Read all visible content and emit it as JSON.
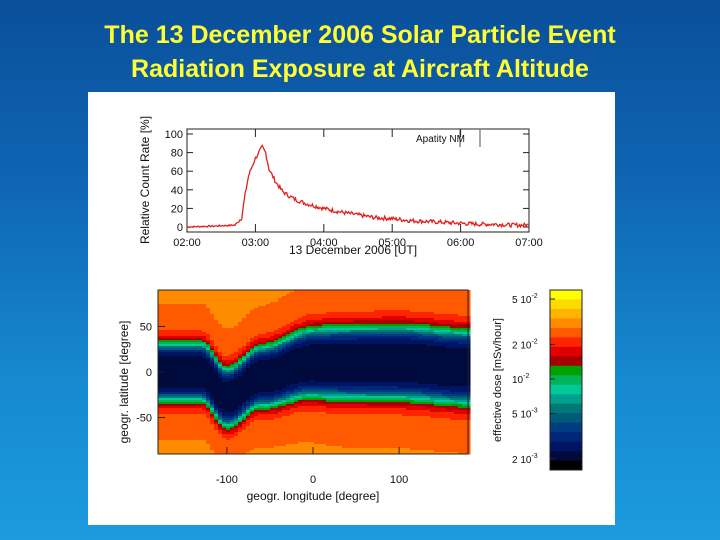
{
  "slide": {
    "title_line1": "The 13 December 2006 Solar Particle Event",
    "title_line2": "Radiation Exposure at Aircraft Altitude"
  },
  "chart_data": [
    {
      "type": "line",
      "title": "",
      "annotation": "Apatity NM",
      "xlabel": "13 December 2006 [UT]",
      "ylabel": "Relative Count Rate [%]",
      "x_ticks": [
        "02:00",
        "03:00",
        "04:00",
        "05:00",
        "06:00",
        "07:00"
      ],
      "y_ticks": [
        0,
        20,
        40,
        60,
        80,
        100
      ],
      "xlim": [
        2.0,
        7.0
      ],
      "ylim": [
        0,
        100
      ],
      "grid": false,
      "line_color": "#e0201c",
      "x": [
        2.0,
        2.4,
        2.7,
        2.8,
        2.85,
        2.9,
        2.95,
        3.0,
        3.05,
        3.1,
        3.15,
        3.2,
        3.3,
        3.4,
        3.5,
        3.6,
        3.75,
        4.0,
        4.25,
        4.5,
        4.75,
        5.0,
        5.25,
        5.5,
        5.75,
        6.0,
        6.25,
        6.5,
        6.75,
        7.0
      ],
      "y": [
        0,
        1,
        2,
        10,
        35,
        55,
        65,
        74,
        80,
        86,
        80,
        62,
        48,
        38,
        33,
        29,
        25,
        20,
        16,
        13,
        10,
        9,
        7,
        6,
        5,
        4,
        3,
        3,
        2,
        2
      ]
    },
    {
      "type": "heatmap",
      "title": "",
      "xlabel": "geogr. longitude [degree]",
      "ylabel": "geogr. latitude [degree]",
      "x_ticks": [
        -100,
        0,
        100
      ],
      "y_ticks": [
        50,
        0,
        -50
      ],
      "xlim": [
        -180,
        180
      ],
      "ylim": [
        -90,
        90
      ],
      "colorbar_label": "effective dose [mSv/hour]",
      "colorbar_ticks": [
        "5 10^-2",
        "2 10^-2",
        "10^-2",
        "5 10^-3",
        "2 10^-3"
      ],
      "colorbar_colors": [
        "#ffff00",
        "#ffdc00",
        "#ffb400",
        "#ff8c00",
        "#ff5a00",
        "#ff2400",
        "#e00000",
        "#a80000",
        "#00a000",
        "#00b45a",
        "#00c896",
        "#00a08c",
        "#007878",
        "#005a78",
        "#003c82",
        "#002878",
        "#001464",
        "#000a3c",
        "#000000"
      ],
      "colorbar_range": [
        0.0016,
        0.06
      ],
      "colorbar_scale": "log",
      "polar_value": 0.03,
      "equatorial_value": 0.002,
      "band_center_lat": [
        [
          -180,
          0
        ],
        [
          -130,
          0
        ],
        [
          -100,
          -28
        ],
        [
          -60,
          -5
        ],
        [
          0,
          10
        ],
        [
          100,
          10
        ],
        [
          180,
          5
        ]
      ]
    }
  ]
}
